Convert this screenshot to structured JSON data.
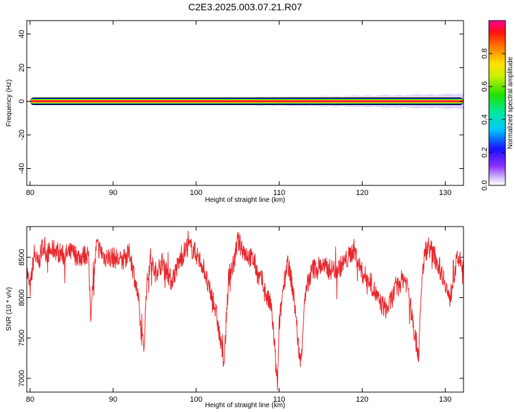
{
  "title": "C2E3.2025.003.07.21.R07",
  "chart_data": [
    {
      "type": "heatmap",
      "xlabel": "Height of straight line (km)",
      "ylabel": "Frequency (Hz)",
      "xlim": [
        79.6,
        132.2
      ],
      "ylim": [
        -50,
        48
      ],
      "xticks": [
        80,
        90,
        100,
        110,
        120,
        130
      ],
      "yticks": [
        -40,
        -20,
        0,
        20,
        40
      ],
      "colorbar": {
        "label": "Normalized spectral amplitude",
        "range": [
          0,
          1
        ],
        "ticks": [
          "0.0",
          "0.2",
          "0.4",
          "0.6",
          "0.8"
        ]
      },
      "band": {
        "center_hz": 0,
        "from_km": 80,
        "to_km": 132.2,
        "peak_amplitude": 1.0
      },
      "grid": false
    },
    {
      "type": "line",
      "xlabel": "Height of straight line (km)",
      "ylabel": "SNR (10 * v/v)",
      "xlim": [
        79.6,
        132.2
      ],
      "ylim": [
        6830,
        8880
      ],
      "xticks": [
        80,
        90,
        100,
        110,
        120,
        130
      ],
      "yticks": [
        7000,
        7500,
        8000,
        8500
      ],
      "series": [
        {
          "color": "#e8252a",
          "x": [
            79.6,
            80.0,
            80.5,
            81.0,
            81.5,
            82.0,
            83.0,
            84.0,
            85.0,
            86.0,
            87.0,
            87.3,
            88.0,
            89.0,
            90.0,
            91.0,
            92.0,
            92.5,
            93.0,
            93.4,
            93.7,
            94.0,
            94.5,
            95.0,
            96.0,
            97.0,
            98.0,
            99.0,
            100.0,
            101.0,
            101.5,
            102.0,
            102.5,
            103.0,
            103.4,
            103.7,
            104.0,
            104.5,
            105.0,
            106.0,
            107.0,
            107.5,
            108.0,
            108.5,
            109.0,
            109.3,
            109.6,
            109.8,
            110.0,
            110.5,
            111.0,
            111.5,
            112.0,
            112.3,
            112.6,
            113.0,
            113.5,
            114.0,
            115.0,
            116.0,
            117.0,
            118.0,
            119.0,
            120.0,
            121.0,
            122.0,
            123.0,
            124.0,
            125.0,
            125.5,
            126.0,
            126.5,
            126.8,
            127.2,
            127.5,
            128.0,
            129.0,
            130.0,
            130.5,
            131.0,
            131.5,
            132.2
          ],
          "y": [
            8350,
            8100,
            8550,
            8400,
            8650,
            8550,
            8600,
            8520,
            8560,
            8500,
            8550,
            7800,
            8650,
            8500,
            8500,
            8450,
            8550,
            8300,
            8000,
            7550,
            7350,
            8100,
            8500,
            8300,
            8450,
            8200,
            8450,
            8650,
            8550,
            8350,
            8100,
            8000,
            7750,
            7400,
            7200,
            7900,
            8300,
            8400,
            8700,
            8550,
            8450,
            8250,
            8200,
            8000,
            7900,
            7600,
            7150,
            6900,
            7650,
            8150,
            8450,
            8200,
            7800,
            7400,
            7180,
            7900,
            8200,
            8350,
            8400,
            8350,
            8350,
            8450,
            8600,
            8300,
            8200,
            7950,
            7850,
            8100,
            8250,
            8150,
            7750,
            7450,
            7300,
            8200,
            8550,
            8650,
            8450,
            8200,
            7950,
            8250,
            8500,
            8350
          ]
        }
      ],
      "grid": false
    }
  ]
}
